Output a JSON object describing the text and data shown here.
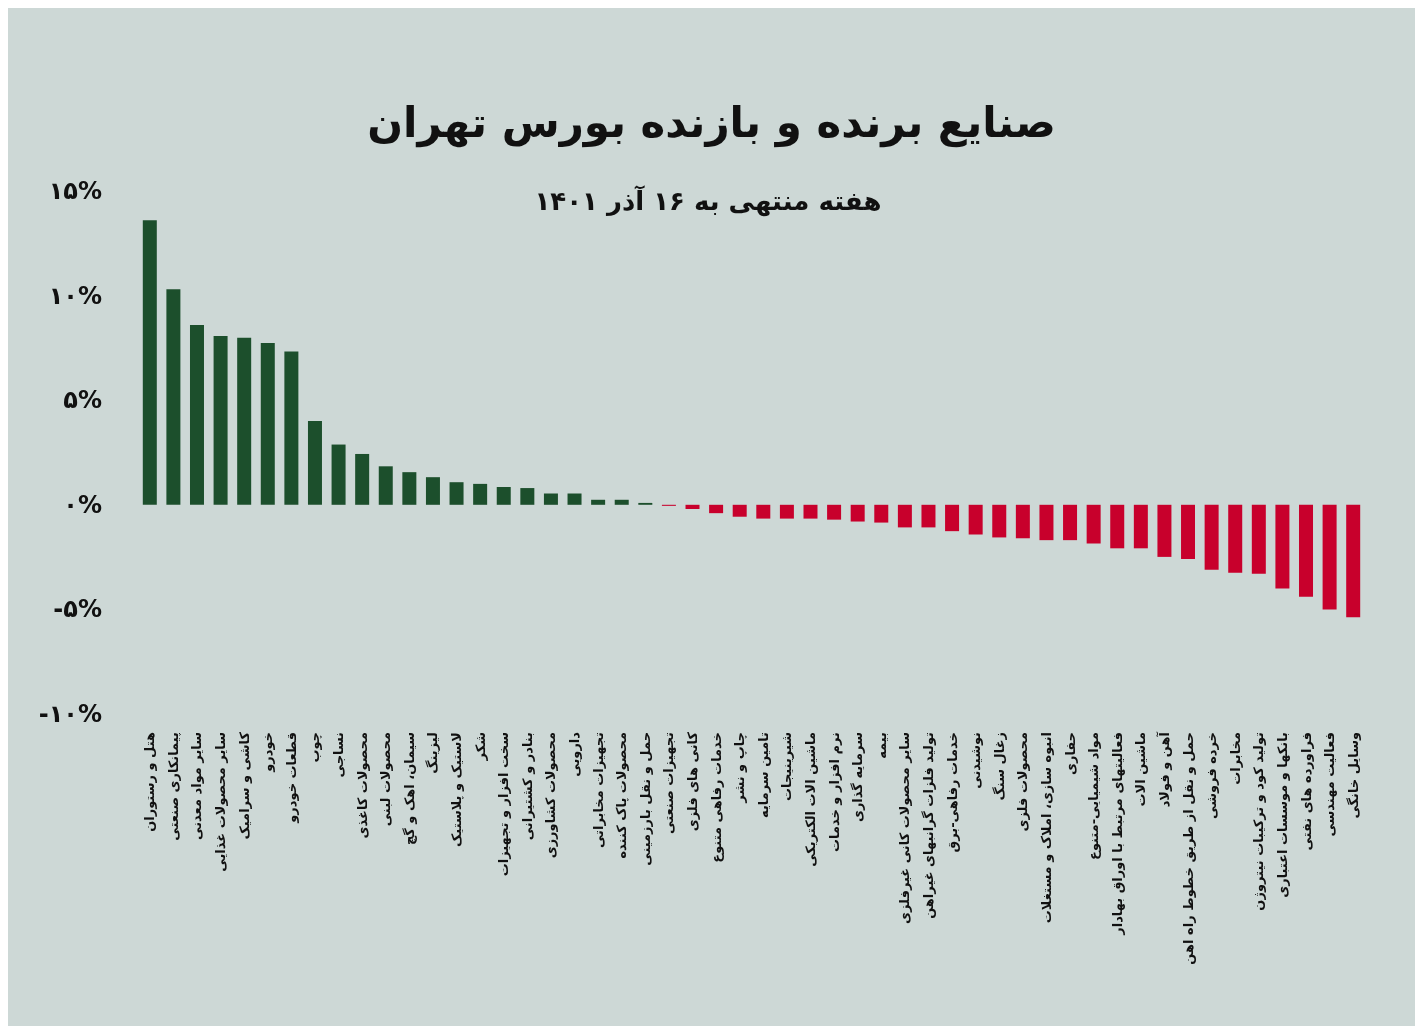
{
  "chart_data": {
    "type": "bar",
    "title": "صنایع برنده و بازنده بورس تهران",
    "subtitle": "هفته منتهی به ۱۶ آذر ۱۴۰۱",
    "categories": [
      "هتل و رستوران",
      "پیمانکاری صنعتی",
      "سایر مواد معدنی",
      "سایر محصولات غذایی",
      "کاشی و سرامیک",
      "خودرو",
      "قطعات خودرو",
      "چوب",
      "نساجی",
      "محصولات کاغذی",
      "محصولات لبنی",
      "سیمان، اهک و گچ",
      "لیزینگ",
      "لاستیک و پلاستیک",
      "شکر",
      "سخت افزار و تجهیزات",
      "بنادر و کشتیرانی",
      "محصولات کشاورزی",
      "دارویی",
      "تجهیزات مخابراتی",
      "محصولات پاک کننده",
      "حمل و نقل بارزمینی",
      "تجهیزات صنعتی",
      "کانی های فلزی",
      "خدمات رفاهی متنوع",
      "چاپ و نشر",
      "تامین سرمایه",
      "شیرینیجات",
      "ماشین الات الکتریکی",
      "نرم افزار و خدمات",
      "سرمایه گذاری",
      "بیمه",
      "سایر محصولات کانی غیرفلزی",
      "تولید فلزات گرانبهای غیراهن",
      "خدمات رفاهی-برق",
      "نوشیدنی",
      "زغال سنگ",
      "محصولات فلزی",
      "انبوه سازی، املاک و مستغلات",
      "حفاری",
      "مواد شیمیایی-متنوع",
      "فعالیتهای مرتبط با اوراق بهادار",
      "ماشین الات",
      "آهن و فولاد",
      "حمل و نقل از طریق خطوط راه اهن",
      "خرده فروشی",
      "مخابرات",
      "تولید کود و ترکیبات نیتروژن",
      "بانکها و موسسات اعتباری",
      "فراورده های نفتی",
      "فعالیت مهندسی",
      "وسایل خانگی"
    ],
    "values": [
      13.6,
      10.3,
      8.6,
      8.07,
      7.98,
      7.74,
      7.33,
      4.01,
      2.88,
      2.43,
      1.84,
      1.56,
      1.32,
      1.08,
      1.0,
      0.85,
      0.8,
      0.54,
      0.54,
      0.24,
      0.24,
      0.09,
      -0.05,
      -0.2,
      -0.4,
      -0.57,
      -0.66,
      -0.66,
      -0.66,
      -0.71,
      -0.8,
      -0.85,
      -1.08,
      -1.08,
      -1.26,
      -1.42,
      -1.56,
      -1.6,
      -1.69,
      -1.69,
      -1.85,
      -2.08,
      -2.08,
      -2.49,
      -2.59,
      -3.11,
      -3.25,
      -3.3,
      -4.0,
      -4.39,
      -5.01,
      -5.38
    ],
    "colors": [
      "#1c4f2c",
      "#1c4f2c",
      "#1c4f2c",
      "#1c4f2c",
      "#1c4f2c",
      "#1c4f2c",
      "#1c4f2c",
      "#1c4f2c",
      "#1c4f2c",
      "#1c4f2c",
      "#1c4f2c",
      "#1c4f2c",
      "#1c4f2c",
      "#1c4f2c",
      "#1c4f2c",
      "#1c4f2c",
      "#1c4f2c",
      "#1c4f2c",
      "#1c4f2c",
      "#1c4f2c",
      "#1c4f2c",
      "#1c4f2c",
      "#c8002c",
      "#c8002c",
      "#c8002c",
      "#c8002c",
      "#c8002c",
      "#c8002c",
      "#c8002c",
      "#c8002c",
      "#c8002c",
      "#c8002c",
      "#c8002c",
      "#c8002c",
      "#c8002c",
      "#c8002c",
      "#c8002c",
      "#c8002c",
      "#c8002c",
      "#c8002c",
      "#c8002c",
      "#c8002c",
      "#c8002c",
      "#c8002c",
      "#c8002c",
      "#c8002c",
      "#c8002c",
      "#c8002c",
      "#c8002c",
      "#c8002c",
      "#c8002c",
      "#c8002c"
    ],
    "ylim": [
      -10,
      15
    ],
    "yticks": [
      {
        "value": -10,
        "label": "-۱۰%"
      },
      {
        "value": -5,
        "label": "-۵%"
      },
      {
        "value": 0,
        "label": "۰%"
      },
      {
        "value": 5,
        "label": "۵%"
      },
      {
        "value": 10,
        "label": "۱۰%"
      },
      {
        "value": 15,
        "label": "۱۵%"
      }
    ],
    "grid": false
  }
}
